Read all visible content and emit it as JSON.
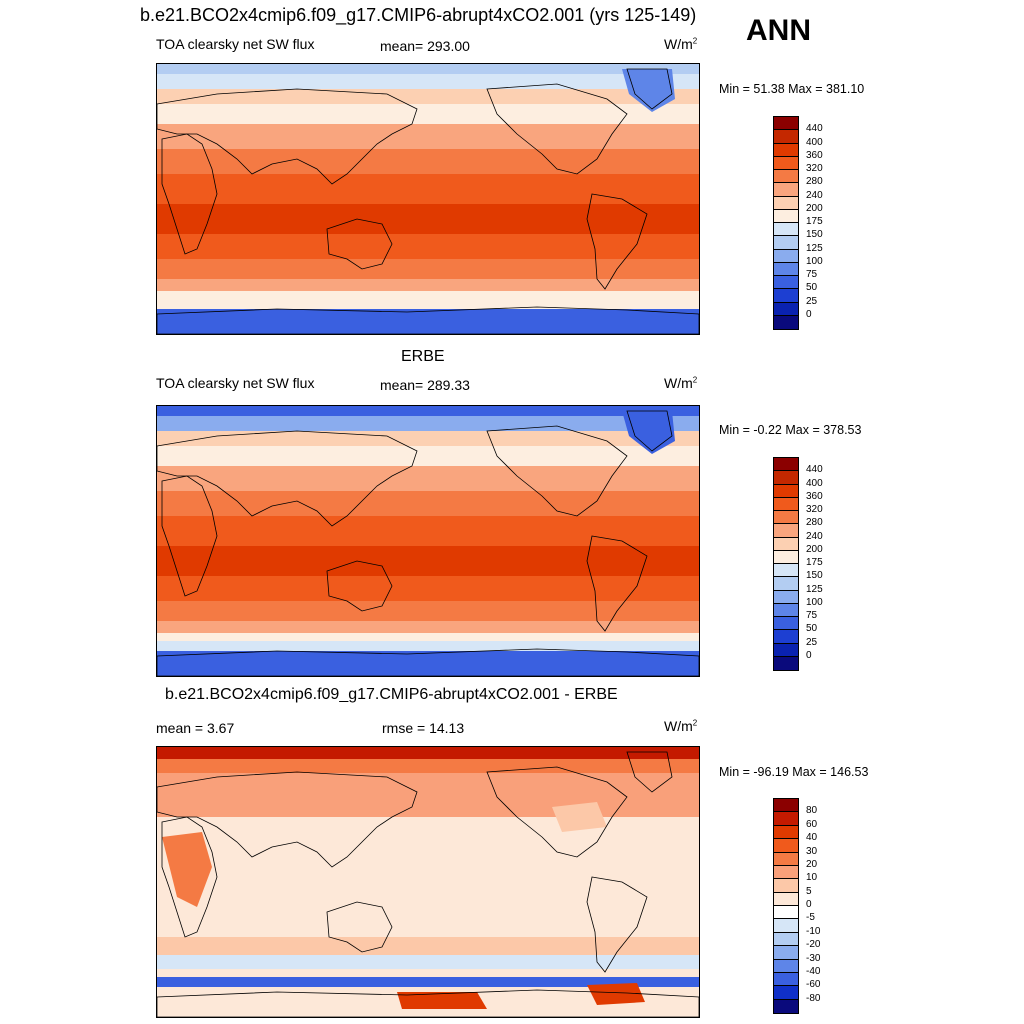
{
  "title": "b.e21.BCO2x4cmip6.f09_g17.CMIP6-abrupt4xCO2.001 (yrs 125-149)",
  "season": "ANN",
  "panels": [
    {
      "heading": "",
      "variable": "TOA clearsky net SW flux",
      "stat_left": "mean= 293.00",
      "stat_mid": "",
      "units": "W/m",
      "units_sup": "2",
      "minmax": "Min =  51.38 Max = 381.10",
      "colorbar": {
        "levels": [
          "440",
          "400",
          "360",
          "320",
          "280",
          "240",
          "200",
          "175",
          "150",
          "125",
          "100",
          "75",
          "50",
          "25",
          "0"
        ],
        "colors": [
          "#8b0000",
          "#c42800",
          "#e03a00",
          "#f05a1c",
          "#f47a44",
          "#f9a57e",
          "#fcd0b2",
          "#fdeee0",
          "#d6e6f7",
          "#b3cdf2",
          "#8aacee",
          "#5e85e8",
          "#3a60e0",
          "#1d3fd2",
          "#0a22b0",
          "#0a0a7c"
        ]
      },
      "field": "sw_model"
    },
    {
      "heading": "ERBE",
      "variable": "TOA clearsky net SW flux",
      "stat_left": "mean= 289.33",
      "stat_mid": "",
      "units": "W/m",
      "units_sup": "2",
      "minmax": "Min =  -0.22 Max = 378.53",
      "colorbar": {
        "levels": [
          "440",
          "400",
          "360",
          "320",
          "280",
          "240",
          "200",
          "175",
          "150",
          "125",
          "100",
          "75",
          "50",
          "25",
          "0"
        ],
        "colors": [
          "#8b0000",
          "#c42800",
          "#e03a00",
          "#f05a1c",
          "#f47a44",
          "#f9a57e",
          "#fcd0b2",
          "#fdeee0",
          "#d6e6f7",
          "#b3cdf2",
          "#8aacee",
          "#5e85e8",
          "#3a60e0",
          "#1d3fd2",
          "#0a22b0",
          "#0a0a7c"
        ]
      },
      "field": "sw_obs"
    },
    {
      "heading": "b.e21.BCO2x4cmip6.f09_g17.CMIP6-abrupt4xCO2.001 - ERBE",
      "variable": "",
      "stat_left": "mean =   3.67",
      "stat_mid": "rmse =  14.13",
      "units": "W/m",
      "units_sup": "2",
      "minmax": "Min = -96.19 Max = 146.53",
      "colorbar": {
        "levels": [
          "80",
          "60",
          "40",
          "30",
          "20",
          "10",
          "5",
          "0",
          "-5",
          "-10",
          "-20",
          "-30",
          "-40",
          "-60",
          "-80"
        ],
        "colors": [
          "#8b0000",
          "#c41a00",
          "#e03a00",
          "#f05a1c",
          "#f47a44",
          "#f9a07a",
          "#fcc8a8",
          "#fde8d8",
          "#ffffff",
          "#d6e6f7",
          "#b3cdf2",
          "#8aacee",
          "#5e85e8",
          "#3a60e0",
          "#1030c8",
          "#0a0a7c"
        ]
      },
      "field": "diff"
    }
  ]
}
